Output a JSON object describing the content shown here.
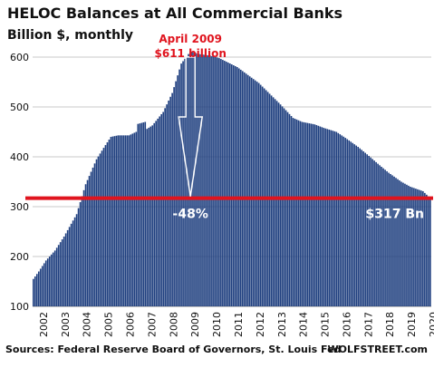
{
  "chart_data": {
    "type": "bar",
    "title": "HELOC Balances at All Commercial Banks",
    "subtitle": "Billion $, monthly",
    "ylim": [
      100,
      620
    ],
    "yticks": [
      100,
      200,
      300,
      400,
      500,
      600
    ],
    "x_tick_labels": [
      "2002",
      "2003",
      "2004",
      "2005",
      "2006",
      "2007",
      "2008",
      "2009",
      "2010",
      "2011",
      "2012",
      "2013",
      "2014",
      "2015",
      "2016",
      "2017",
      "2018",
      "2019",
      "2020"
    ],
    "x_start_year": 2002,
    "grid": true,
    "bar_color": "#1f3f7f",
    "accent_color": "#e0141e",
    "keypoints": [
      [
        "2002-01",
        155
      ],
      [
        "2002-04",
        170
      ],
      [
        "2002-08",
        192
      ],
      [
        "2003-01",
        212
      ],
      [
        "2003-06",
        240
      ],
      [
        "2004-01",
        285
      ],
      [
        "2004-06",
        345
      ],
      [
        "2004-12",
        395
      ],
      [
        "2005-04",
        418
      ],
      [
        "2005-08",
        440
      ],
      [
        "2005-12",
        443
      ],
      [
        "2006-06",
        443
      ],
      [
        "2006-10",
        450
      ],
      [
        "2006-11",
        466
      ],
      [
        "2007-03",
        470
      ],
      [
        "2007-04",
        456
      ],
      [
        "2007-07",
        463
      ],
      [
        "2008-01",
        490
      ],
      [
        "2008-06",
        528
      ],
      [
        "2008-11",
        587
      ],
      [
        "2009-04",
        611
      ],
      [
        "2009-09",
        606
      ],
      [
        "2010-03",
        603
      ],
      [
        "2010-08",
        598
      ],
      [
        "2011-06",
        580
      ],
      [
        "2012-06",
        548
      ],
      [
        "2013-06",
        505
      ],
      [
        "2014-01",
        478
      ],
      [
        "2014-06",
        470
      ],
      [
        "2015-01",
        465
      ],
      [
        "2015-06",
        458
      ],
      [
        "2016-01",
        450
      ],
      [
        "2016-06",
        438
      ],
      [
        "2017-01",
        420
      ],
      [
        "2017-06",
        405
      ],
      [
        "2018-01",
        383
      ],
      [
        "2018-06",
        368
      ],
      [
        "2019-01",
        350
      ],
      [
        "2019-06",
        340
      ],
      [
        "2020-01",
        331
      ],
      [
        "2020-05",
        317
      ]
    ],
    "reference_line": {
      "value": 317
    },
    "annotations": {
      "peak_line1": "April 2009",
      "peak_line2": "$611 billion",
      "change": "-48%",
      "latest": "$317 Bn"
    }
  },
  "footer": {
    "source": "Sources: Federal Reserve Board of Governors, St. Louis Fed",
    "brand": "WOLFSTREET.com"
  }
}
